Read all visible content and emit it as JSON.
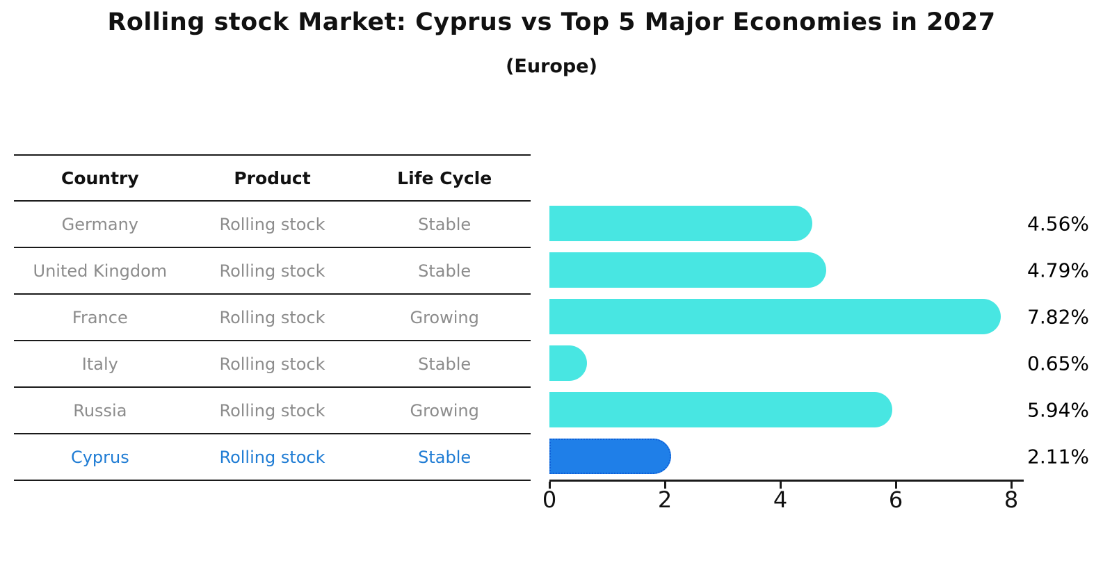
{
  "title": "Rolling stock Market: Cyprus vs Top 5 Major Economies in 2027",
  "subtitle": "(Europe)",
  "table": {
    "headers": [
      "Country",
      "Product",
      "Life Cycle"
    ],
    "rows": [
      {
        "country": "Germany",
        "product": "Rolling stock",
        "life_cycle": "Stable",
        "highlighted": false
      },
      {
        "country": "United Kingdom",
        "product": "Rolling stock",
        "life_cycle": "Stable",
        "highlighted": false
      },
      {
        "country": "France",
        "product": "Rolling stock",
        "life_cycle": "Growing",
        "highlighted": false
      },
      {
        "country": "Italy",
        "product": "Rolling stock",
        "life_cycle": "Stable",
        "highlighted": false
      },
      {
        "country": "Russia",
        "product": "Rolling stock",
        "life_cycle": "Growing",
        "highlighted": false
      },
      {
        "country": "Cyprus",
        "product": "Rolling stock",
        "life_cycle": "Stable",
        "highlighted": true
      }
    ]
  },
  "chart_data": {
    "type": "bar",
    "orientation": "horizontal",
    "title": "Rolling stock Market: Cyprus vs Top 5 Major Economies in 2027",
    "subtitle": "(Europe)",
    "categories": [
      "Germany",
      "United Kingdom",
      "France",
      "Italy",
      "Russia",
      "Cyprus"
    ],
    "values": [
      4.56,
      4.79,
      7.82,
      0.65,
      5.94,
      2.11
    ],
    "labels": [
      "4.56%",
      "4.79%",
      "7.82%",
      "0.65%",
      "5.94%",
      "2.11%"
    ],
    "xlabel": "",
    "ylabel": "",
    "xlim": [
      0,
      8.2
    ],
    "xticks": [
      0,
      2,
      4,
      6,
      8
    ],
    "grid": false,
    "legend": "none",
    "highlight_category": "Cyprus",
    "bar_color": "#48e6e2",
    "highlight_bar_color": "#1f7fe8",
    "highlight_border_color": "#0f5fd7"
  },
  "colors": {
    "bar_cyan": "#48e6e2",
    "bar_blue": "#1f7fe8",
    "blue_border": "#0f5fd7",
    "blue_text": "#1f7cd4",
    "gray_text": "#8c8c8c",
    "line": "#1a1a1a",
    "background": "#ffffff"
  }
}
